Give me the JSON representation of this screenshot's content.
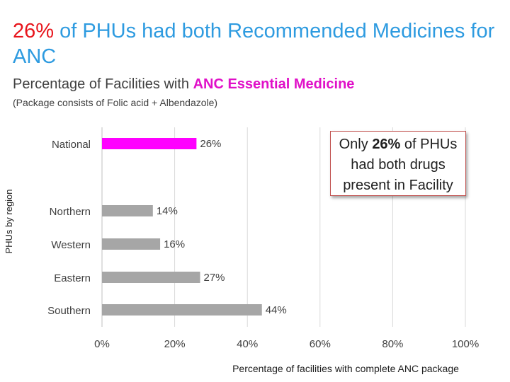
{
  "header": {
    "title_highlight": "26%",
    "title_rest": " of PHUs had both Recommended Medicines for ANC",
    "subtitle_prefix": "Percentage of Facilities with ",
    "subtitle_highlight": "ANC Essential Medicine",
    "note": "(Package consists of Folic acid + Albendazole)"
  },
  "callout": {
    "prefix": "Only ",
    "highlight": "26%",
    "rest": " of PHUs had both drugs present in Facility"
  },
  "colors": {
    "title": "#2e9be0",
    "title_highlight": "#e8151c",
    "subtitle_highlight": "#e010c8",
    "national_bar": "#ff00ff",
    "region_bar": "#a6a6a6",
    "gridline": "#d9d9d9"
  },
  "chart_data": {
    "type": "bar",
    "orientation": "horizontal",
    "categories": [
      "National",
      "Northern",
      "Western",
      "Eastern",
      "Southern"
    ],
    "values": [
      26,
      14,
      16,
      27,
      44
    ],
    "value_labels": [
      "26%",
      "14%",
      "16%",
      "27%",
      "44%"
    ],
    "title": "Percentage of Facilities with ANC Essential Medicine",
    "xlabel": "Percentage of facilities with complete ANC package",
    "ylabel": "PHUs by region",
    "xlim": [
      0,
      100
    ],
    "xticks": [
      0,
      20,
      40,
      60,
      80,
      100
    ],
    "xtick_labels": [
      "0%",
      "20%",
      "40%",
      "60%",
      "80%",
      "100%"
    ],
    "grid": true
  }
}
